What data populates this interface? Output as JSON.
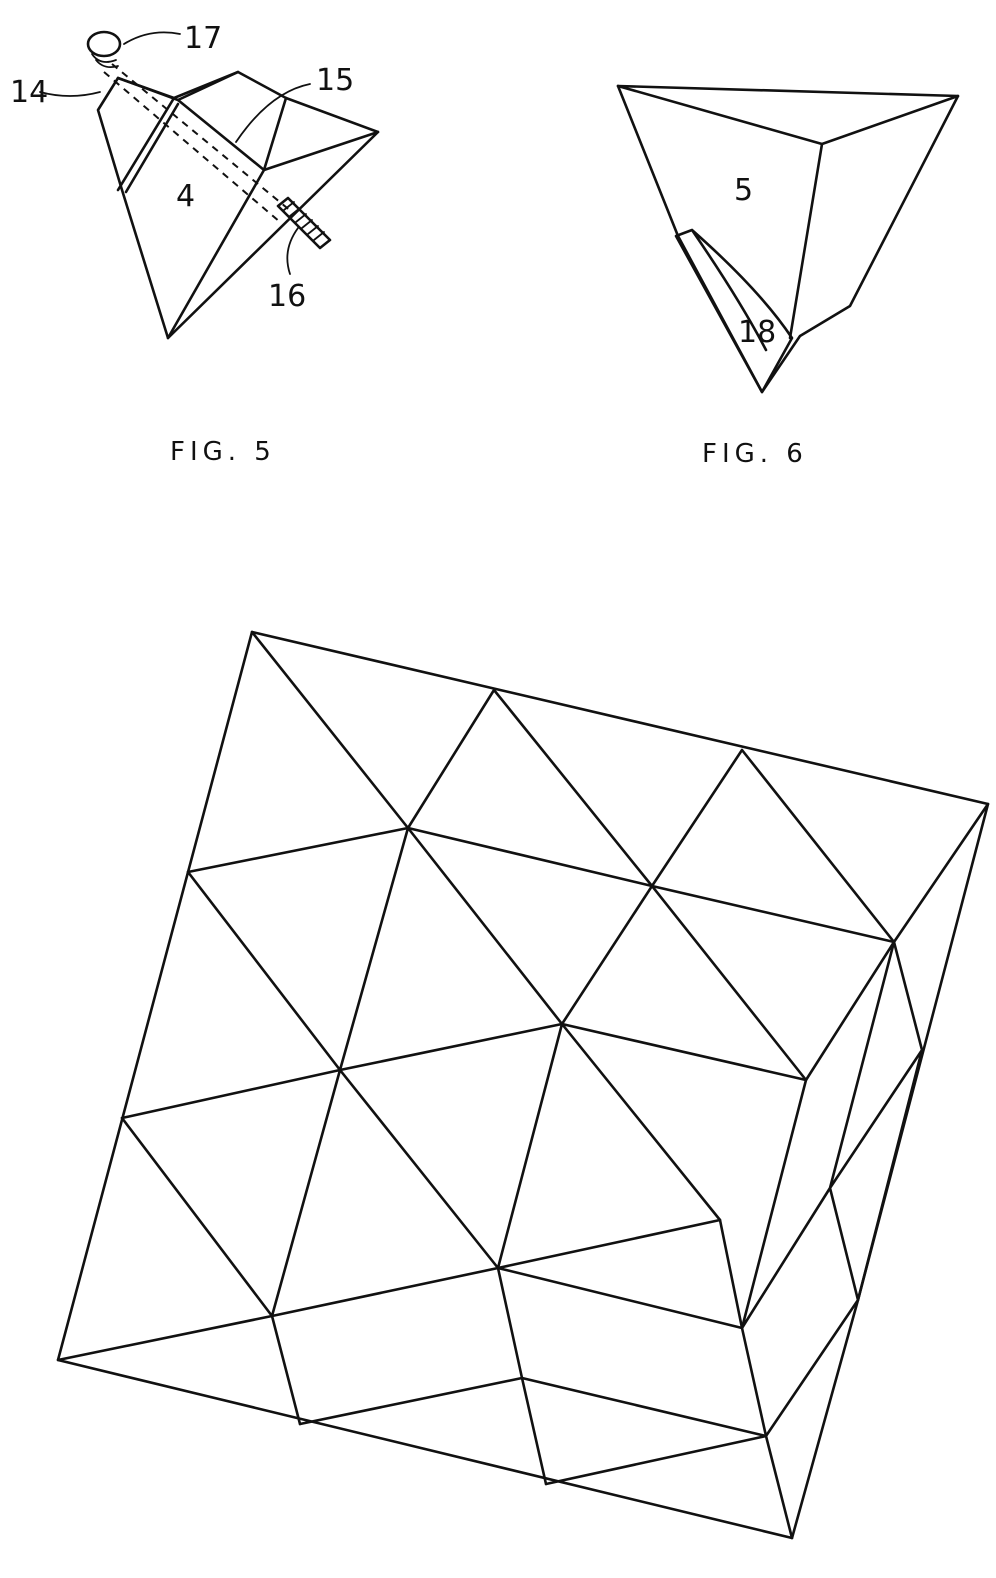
{
  "figure5": {
    "caption": "FIG. 5",
    "labels": {
      "part_14": "14",
      "part_17": "17",
      "part_15": "15",
      "part_4": "4",
      "part_16": "16"
    }
  },
  "figure6": {
    "caption": "FIG. 6",
    "labels": {
      "part_5": "5",
      "part_18": "18"
    }
  }
}
